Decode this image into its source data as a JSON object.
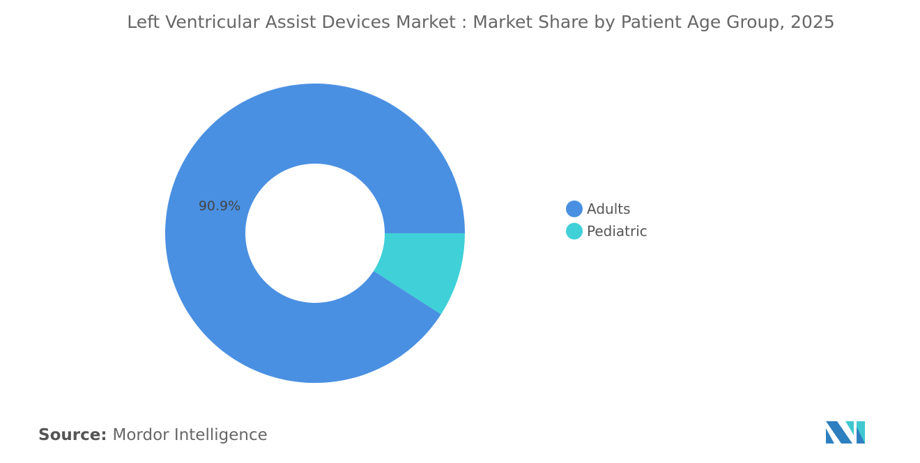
{
  "chart_data": {
    "type": "pie",
    "variant": "donut",
    "title": "Left Ventricular Assist Devices Market : Market Share by Patient Age Group, 2025",
    "categories": [
      "Adults",
      "Pediatric"
    ],
    "values": [
      90.9,
      9.1
    ],
    "unit": "%",
    "colors": [
      "#4a90e2",
      "#40d0d8"
    ],
    "data_labels": [
      "90.9%",
      ""
    ],
    "legend": "right"
  },
  "source": {
    "label": "Source:",
    "text": "Mordor Intelligence"
  },
  "logo": {
    "name": "Mordor Intelligence logo",
    "colors": [
      "#2d7fc0",
      "#40c8d0"
    ]
  }
}
